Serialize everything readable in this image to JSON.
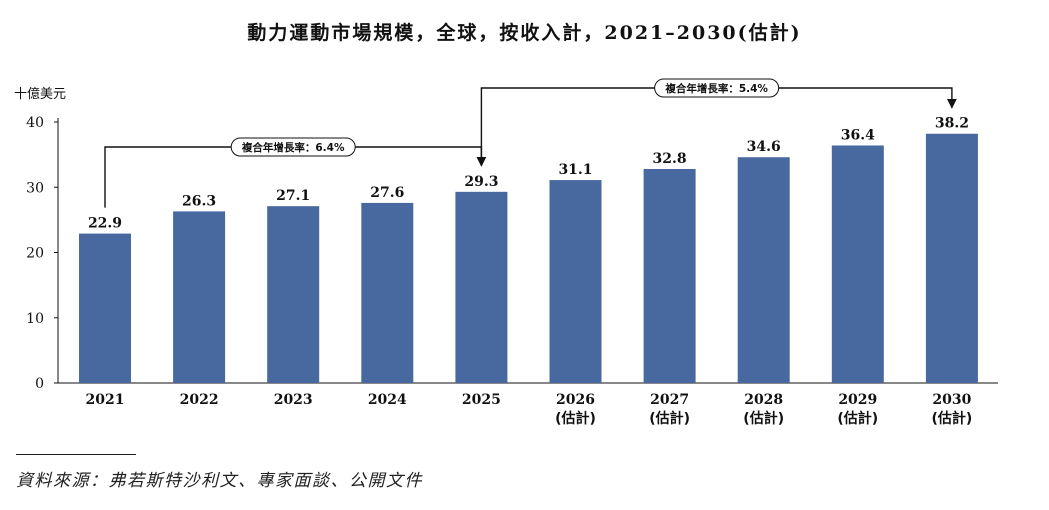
{
  "chart_data": {
    "type": "bar",
    "title": "動力運動市場規模，全球，按收入計，2021–2030(估計)",
    "ylabel": "十億美元",
    "xlabel": "",
    "ylim": [
      0,
      40
    ],
    "yticks": [
      0,
      10,
      20,
      30,
      40
    ],
    "grid": false,
    "categories": [
      "2021",
      "2022",
      "2023",
      "2024",
      "2025",
      "2026",
      "2027",
      "2028",
      "2029",
      "2030"
    ],
    "category_notes": [
      "",
      "",
      "",
      "",
      "",
      "(估計)",
      "(估計)",
      "(估計)",
      "(估計)",
      "(估計)"
    ],
    "values": [
      22.9,
      26.3,
      27.1,
      27.6,
      29.3,
      31.1,
      32.8,
      34.6,
      36.4,
      38.2
    ],
    "value_labels": [
      "22.9",
      "26.3",
      "27.1",
      "27.6",
      "29.3",
      "31.1",
      "32.8",
      "34.6",
      "36.4",
      "38.2"
    ],
    "bar_color": "#4769A0",
    "annotations": [
      {
        "label": "複合年增長率：6.4%",
        "from": "2021",
        "to": "2025"
      },
      {
        "label": "複合年增長率：5.4%",
        "from": "2025",
        "to": "2030"
      }
    ]
  },
  "source": "資料來源：弗若斯特沙利文、專家面談、公開文件"
}
